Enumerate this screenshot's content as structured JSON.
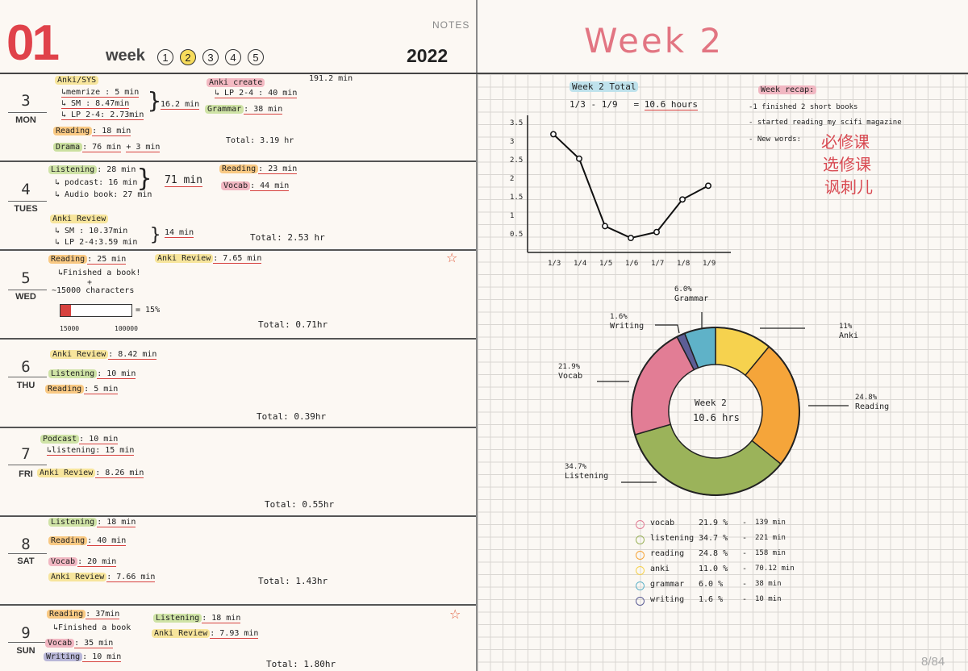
{
  "header": {
    "big_number": "01",
    "week_label": "week",
    "week_numbers": [
      "1",
      "2",
      "3",
      "4",
      "5"
    ],
    "active_week": "2",
    "notes_label": "NOTES",
    "year": "2022"
  },
  "days": {
    "mon": {
      "num": "3",
      "name": "MON",
      "anki_sys": "Anki/SYS",
      "memorize": "↳memrize : 5 min",
      "sm": "↳ SM : 8.47min",
      "lp": "↳ LP 2-4: 2.73min",
      "brace_total": "16.2 min",
      "anki_create": "Anki create",
      "create_lp": "↳ LP 2-4 : 40 min",
      "grammar": "Grammar",
      "grammar_val": ": 38 min",
      "top_total": "191.2 min",
      "reading": "Reading",
      "reading_val": ": 18 min",
      "drama": "Drama",
      "drama_val": ": 76 min",
      "drama_extra": "+ 3 min",
      "total": "Total: 3.19 hr"
    },
    "tue": {
      "num": "4",
      "name": "TUES",
      "listening": "Listening",
      "listening_val": ": 28 min",
      "podcast": "↳ podcast: 16 min",
      "audiobook": "↳ Audio book: 27 min",
      "brace_total": "71 min",
      "reading": "Reading",
      "reading_val": ": 23 min",
      "vocab": "Vocab",
      "vocab_val": ": 44 min",
      "anki_review": "Anki Review",
      "sm": "↳ SM :  10.37min",
      "lp": "↳ LP 2-4:3.59 min",
      "brace2_total": "14 min",
      "total": "Total: 2.53 hr"
    },
    "wed": {
      "num": "5",
      "name": "WED",
      "reading": "Reading",
      "reading_val": ": 25 min",
      "finished": "↳Finished a book!",
      "plus": "+",
      "characters": "~15000 characters",
      "progress_pct": 15,
      "pct_label": "= 15%",
      "bar_start": "15000",
      "bar_end": "100000",
      "anki_review": "Anki Review",
      "anki_val": ": 7.65 min",
      "total": "Total: 0.71hr"
    },
    "thu": {
      "num": "6",
      "name": "THU",
      "anki_review": "Anki Review",
      "anki_val": ": 8.42 min",
      "listening": "Listening",
      "listening_val": ": 10 min",
      "reading": "Reading",
      "reading_val": ": 5 min",
      "total": "Total: 0.39hr"
    },
    "fri": {
      "num": "7",
      "name": "FRI",
      "podcast": "Podcast",
      "podcast_val": ": 10 min",
      "listening": "↳listening: 15 min",
      "anki_review": "Anki Review",
      "anki_val": ": 8.26 min",
      "total": "Total: 0.55hr"
    },
    "sat": {
      "num": "8",
      "name": "SAT",
      "listening": "Listening",
      "listening_val": ": 18 min",
      "reading": "Reading",
      "reading_val": ": 40 min",
      "vocab": "Vocab",
      "vocab_val": ": 20 min",
      "anki_review": "Anki Review",
      "anki_val": ": 7.66 min",
      "total": "Total: 1.43hr"
    },
    "sun": {
      "num": "9",
      "name": "SUN",
      "reading": "Reading",
      "reading_val": ": 37min",
      "finished": "↳Finished a book",
      "vocab": "Vocab",
      "vocab_val": ": 35 min",
      "writing": "Writing",
      "writing_val": ": 10 min",
      "listening": "Listening",
      "listening_val": ": 18 min",
      "anki_review": "Anki Review",
      "anki_val": ": 7.93 min",
      "total": "Total: 1.80hr"
    }
  },
  "right": {
    "title": "Week 2",
    "total_label": "Week 2 Total",
    "date_range": "1/3 - 1/9",
    "equals": "=",
    "total_hours": "10.6 hours",
    "recap_label": "Week recap:",
    "recap_items": [
      "-1 finished 2 short books",
      "- started reading my scifi magazine",
      "- New words:"
    ],
    "new_words": [
      "必修课",
      "选修课",
      "讽刺儿"
    ],
    "donut_center_1": "Week 2",
    "donut_center_2": "10.6 hrs",
    "legend": [
      {
        "name": "vocab",
        "pct": "21.9 %",
        "min": "139 min",
        "color": "#e27d95"
      },
      {
        "name": "listening",
        "pct": "34.7 %",
        "min": "221 min",
        "color": "#9bb35a"
      },
      {
        "name": "reading",
        "pct": "24.8 %",
        "min": "158 min",
        "color": "#f5a53a"
      },
      {
        "name": "anki",
        "pct": "11.0 %",
        "min": "70.12 min",
        "color": "#f6d24e"
      },
      {
        "name": "grammar",
        "pct": "6.0 %",
        "min": "38 min",
        "color": "#5fb2c8"
      },
      {
        "name": "writing",
        "pct": "1.6 %",
        "min": "10 min",
        "color": "#5d5e96"
      }
    ],
    "page_count": "8/84"
  },
  "chart_data": [
    {
      "type": "line",
      "title": "",
      "x": [
        "1/3",
        "1/4",
        "1/5",
        "1/6",
        "1/7",
        "1/8",
        "1/9"
      ],
      "y": [
        3.19,
        2.53,
        0.71,
        0.39,
        0.55,
        1.43,
        1.8
      ],
      "y_ticks": [
        "0.5",
        "1",
        "1.5",
        "2",
        "2.5",
        "3",
        "3.5"
      ],
      "ylim": [
        0,
        3.7
      ],
      "grid": false
    },
    {
      "type": "pie",
      "labels": [
        "Anki",
        "Reading",
        "Listening",
        "Vocab",
        "Writing",
        "Grammar"
      ],
      "values": [
        11.0,
        24.8,
        34.7,
        21.9,
        1.6,
        6.0
      ],
      "value_labels": [
        "11%",
        "24.8%",
        "34.7%",
        "21.9%",
        "1.6%",
        "6.0%"
      ],
      "colors": [
        "#f6d24e",
        "#f5a53a",
        "#9bb35a",
        "#e27d95",
        "#5d5e96",
        "#5fb2c8"
      ]
    }
  ]
}
